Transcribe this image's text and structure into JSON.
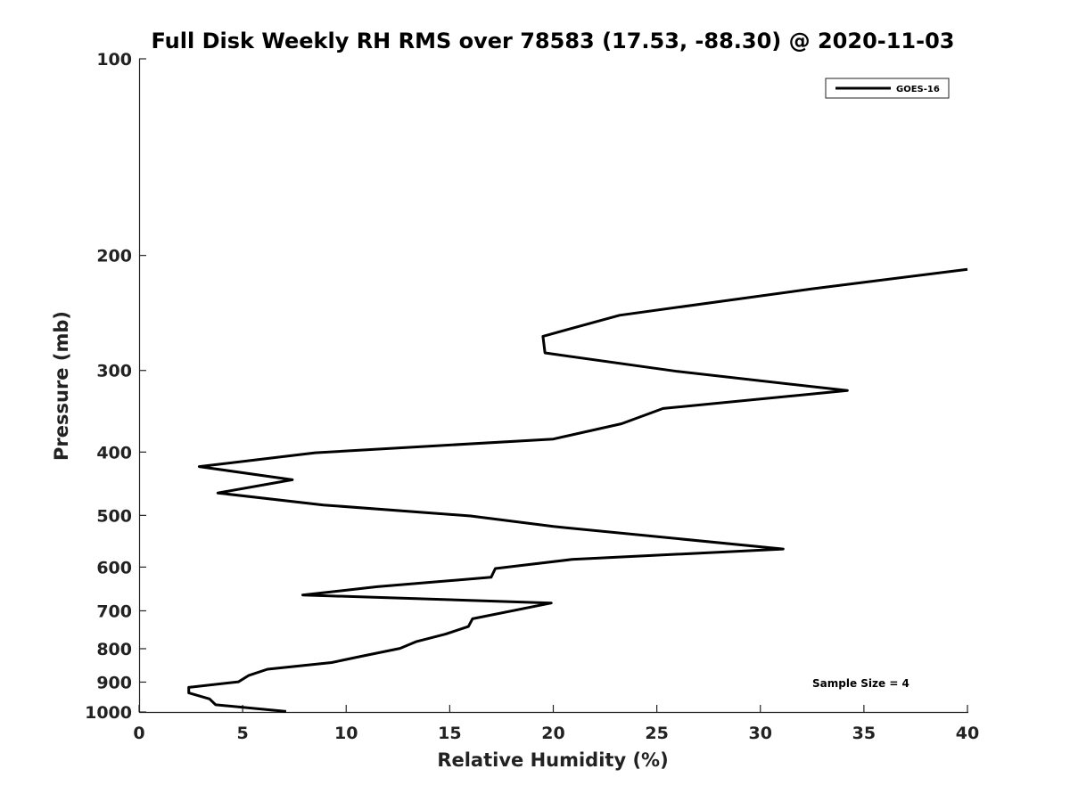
{
  "chart_data": {
    "type": "line",
    "title": "Full Disk Weekly RH RMS over 78583 (17.53, -88.30) @ 2020-11-03",
    "xlabel": "Relative Humidity (%)",
    "ylabel": "Pressure (mb)",
    "xlim": [
      0,
      40
    ],
    "ylim": [
      100,
      1000
    ],
    "yscale": "log",
    "y_reversed": true,
    "grid": false,
    "legend_position": "top-right",
    "x_ticks": [
      "0",
      "5",
      "10",
      "15",
      "20",
      "25",
      "30",
      "35",
      "40"
    ],
    "y_ticks": [
      "100",
      "200",
      "300",
      "400",
      "500",
      "600",
      "700",
      "800",
      "900",
      "1000"
    ],
    "series": [
      {
        "name": "GOES-16",
        "color": "#000000",
        "points": [
          [
            40.0,
            210
          ],
          [
            32.5,
            225
          ],
          [
            23.2,
            247
          ],
          [
            19.5,
            266
          ],
          [
            19.6,
            282
          ],
          [
            26.0,
            301
          ],
          [
            34.2,
            322
          ],
          [
            25.3,
            343
          ],
          [
            23.3,
            362
          ],
          [
            20.0,
            382
          ],
          [
            8.5,
            401
          ],
          [
            2.9,
            421
          ],
          [
            7.4,
            441
          ],
          [
            3.8,
            462
          ],
          [
            8.9,
            482
          ],
          [
            16.0,
            501
          ],
          [
            20.0,
            520
          ],
          [
            31.1,
            563
          ],
          [
            20.9,
            584
          ],
          [
            17.2,
            603
          ],
          [
            17.0,
            622
          ],
          [
            11.5,
            643
          ],
          [
            7.9,
            662
          ],
          [
            19.9,
            681
          ],
          [
            16.1,
            720
          ],
          [
            15.9,
            740
          ],
          [
            14.8,
            760
          ],
          [
            13.4,
            780
          ],
          [
            12.6,
            799
          ],
          [
            10.7,
            822
          ],
          [
            9.3,
            840
          ],
          [
            6.2,
            860
          ],
          [
            5.3,
            879
          ],
          [
            4.8,
            899
          ],
          [
            2.4,
            917
          ],
          [
            2.4,
            935
          ],
          [
            3.4,
            955
          ],
          [
            3.7,
            975
          ],
          [
            7.1,
            998
          ]
        ]
      }
    ],
    "annotations": [
      "Sample Size = 4"
    ]
  }
}
